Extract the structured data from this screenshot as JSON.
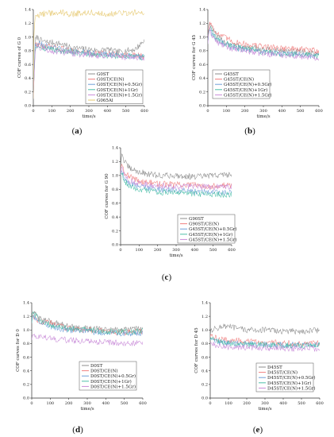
{
  "chart_data": [
    {
      "panel": "(a)",
      "type": "line",
      "ylabel": "COF curves of G 0",
      "xlabel": "time/s",
      "xlim": [
        0,
        600
      ],
      "ylim": [
        0,
        1.4
      ],
      "xticks": [
        0,
        100,
        200,
        300,
        400,
        500,
        600
      ],
      "yticks": [
        0.0,
        0.2,
        0.4,
        0.6,
        0.8,
        1.0,
        1.2,
        1.4
      ],
      "legend_position": "bottom-right",
      "series": [
        {
          "name": "G0ST",
          "color": "#8c8c8c",
          "x": [
            0,
            5,
            10,
            20,
            40,
            60,
            100,
            150,
            200,
            250,
            300,
            350,
            400,
            450,
            500,
            550,
            600
          ],
          "values": [
            0.1,
            0.55,
            0.95,
            1.0,
            0.95,
            0.93,
            0.92,
            0.9,
            0.85,
            0.83,
            0.82,
            0.8,
            0.82,
            0.78,
            0.8,
            0.82,
            0.95
          ]
        },
        {
          "name": "G0ST/CE(N)",
          "color": "#f08080",
          "x": [
            0,
            5,
            10,
            20,
            40,
            60,
            100,
            150,
            200,
            250,
            300,
            350,
            400,
            450,
            500,
            550,
            600
          ],
          "values": [
            0.1,
            0.5,
            0.88,
            0.9,
            0.88,
            0.86,
            0.85,
            0.83,
            0.8,
            0.78,
            0.77,
            0.76,
            0.76,
            0.74,
            0.74,
            0.73,
            0.72
          ]
        },
        {
          "name": "G0ST/CE(N)+0.5Gr)",
          "color": "#6fa0d8",
          "x": [
            0,
            5,
            10,
            20,
            40,
            60,
            100,
            150,
            200,
            250,
            300,
            350,
            400,
            450,
            500,
            550,
            600
          ],
          "values": [
            0.1,
            0.5,
            0.9,
            0.92,
            0.9,
            0.87,
            0.85,
            0.82,
            0.8,
            0.78,
            0.77,
            0.75,
            0.75,
            0.74,
            0.73,
            0.72,
            0.72
          ]
        },
        {
          "name": "G0ST/CE(N)+1Gr)",
          "color": "#4cbfa8",
          "x": [
            0,
            5,
            10,
            20,
            40,
            60,
            100,
            150,
            200,
            250,
            300,
            350,
            400,
            450,
            500,
            550,
            600
          ],
          "values": [
            0.1,
            0.5,
            0.86,
            0.88,
            0.86,
            0.84,
            0.82,
            0.8,
            0.78,
            0.76,
            0.75,
            0.74,
            0.73,
            0.72,
            0.72,
            0.71,
            0.7
          ]
        },
        {
          "name": "G0ST/CE(N)+1.5Gr)",
          "color": "#c88ad8",
          "x": [
            0,
            5,
            10,
            20,
            40,
            60,
            100,
            150,
            200,
            250,
            300,
            350,
            400,
            450,
            500,
            550,
            600
          ],
          "values": [
            0.1,
            0.45,
            0.82,
            0.85,
            0.84,
            0.82,
            0.8,
            0.78,
            0.77,
            0.75,
            0.74,
            0.73,
            0.73,
            0.72,
            0.71,
            0.71,
            0.7
          ]
        },
        {
          "name": "G065Al",
          "color": "#e6c86e",
          "x": [
            0,
            3,
            8,
            15,
            30,
            60,
            100,
            150,
            200,
            250,
            300,
            350,
            400,
            450,
            500,
            550,
            600
          ],
          "values": [
            0.1,
            1.0,
            1.25,
            1.3,
            1.32,
            1.34,
            1.35,
            1.36,
            1.33,
            1.35,
            1.36,
            1.35,
            1.33,
            1.35,
            1.34,
            1.36,
            1.36
          ]
        }
      ]
    },
    {
      "panel": "(b)",
      "type": "line",
      "ylabel": "COF curves for G 45",
      "xlabel": "time/s",
      "xlim": [
        0,
        600
      ],
      "ylim": [
        0,
        1.4
      ],
      "xticks": [
        0,
        100,
        200,
        300,
        400,
        500,
        600
      ],
      "yticks": [
        0.0,
        0.2,
        0.4,
        0.6,
        0.8,
        1.0,
        1.2,
        1.4
      ],
      "legend_position": "bottom-left",
      "series": [
        {
          "name": "G45ST",
          "color": "#8c8c8c",
          "x": [
            0,
            5,
            10,
            20,
            50,
            100,
            150,
            200,
            300,
            400,
            500,
            600
          ],
          "values": [
            0.9,
            1.15,
            1.2,
            1.15,
            1.0,
            0.92,
            0.88,
            0.85,
            0.82,
            0.8,
            0.78,
            0.76
          ]
        },
        {
          "name": "G45ST/CE(N)",
          "color": "#f08080",
          "x": [
            0,
            5,
            10,
            20,
            50,
            100,
            150,
            200,
            300,
            400,
            500,
            600
          ],
          "values": [
            0.9,
            1.15,
            1.22,
            1.18,
            1.05,
            0.98,
            0.92,
            0.9,
            0.86,
            0.84,
            0.82,
            0.8
          ]
        },
        {
          "name": "G45ST/CE(N)+0.5Gr)",
          "color": "#6fa0d8",
          "x": [
            0,
            5,
            10,
            20,
            50,
            100,
            150,
            200,
            300,
            400,
            500,
            600
          ],
          "values": [
            0.9,
            1.1,
            1.12,
            1.05,
            0.95,
            0.88,
            0.84,
            0.82,
            0.78,
            0.76,
            0.74,
            0.72
          ]
        },
        {
          "name": "G45ST/CE(N)+1Gr)",
          "color": "#4cbfa8",
          "x": [
            0,
            5,
            10,
            20,
            50,
            100,
            150,
            200,
            300,
            400,
            500,
            600
          ],
          "values": [
            0.9,
            1.1,
            1.15,
            1.08,
            0.96,
            0.9,
            0.85,
            0.83,
            0.79,
            0.76,
            0.74,
            0.73
          ]
        },
        {
          "name": "G45ST/CE(N)+1.5Gr)",
          "color": "#c88ad8",
          "x": [
            0,
            5,
            10,
            20,
            50,
            100,
            150,
            200,
            300,
            400,
            500,
            600
          ],
          "values": [
            0.9,
            1.08,
            1.1,
            1.04,
            0.92,
            0.86,
            0.82,
            0.8,
            0.76,
            0.74,
            0.72,
            0.7
          ]
        }
      ]
    },
    {
      "panel": "(c)",
      "type": "line",
      "ylabel": "COF curves for G 90",
      "xlabel": "time/s",
      "xlim": [
        0,
        600
      ],
      "ylim": [
        0,
        1.4
      ],
      "xticks": [
        0,
        100,
        200,
        300,
        400,
        500,
        600
      ],
      "yticks": [
        0.0,
        0.2,
        0.4,
        0.6,
        0.8,
        1.0,
        1.2,
        1.4
      ],
      "legend_position": "bottom-right",
      "series": [
        {
          "name": "G90ST",
          "color": "#8c8c8c",
          "x": [
            0,
            5,
            10,
            20,
            50,
            100,
            150,
            200,
            300,
            400,
            500,
            600
          ],
          "values": [
            1.0,
            1.35,
            1.3,
            1.2,
            1.1,
            1.05,
            1.02,
            1.0,
            1.0,
            0.98,
            1.0,
            1.02
          ]
        },
        {
          "name": "G90ST/CE(N)",
          "color": "#f08080",
          "x": [
            0,
            5,
            10,
            20,
            50,
            100,
            150,
            200,
            300,
            400,
            500,
            600
          ],
          "values": [
            1.0,
            1.2,
            1.15,
            1.05,
            0.98,
            0.92,
            0.9,
            0.88,
            0.87,
            0.86,
            0.85,
            0.86
          ]
        },
        {
          "name": "G45ST/CE(N)+0.5Gr)",
          "color": "#6fa0d8",
          "x": [
            0,
            5,
            10,
            20,
            50,
            100,
            150,
            200,
            300,
            400,
            500,
            600
          ],
          "values": [
            1.0,
            1.1,
            1.05,
            0.95,
            0.88,
            0.84,
            0.82,
            0.8,
            0.78,
            0.77,
            0.76,
            0.75
          ]
        },
        {
          "name": "G45ST/CE(N)+1Gr)",
          "color": "#4cbfa8",
          "x": [
            0,
            5,
            10,
            20,
            50,
            100,
            150,
            200,
            300,
            400,
            500,
            600
          ],
          "values": [
            1.0,
            1.05,
            1.0,
            0.92,
            0.85,
            0.8,
            0.78,
            0.76,
            0.75,
            0.74,
            0.73,
            0.72
          ]
        },
        {
          "name": "G45ST/CE(N)+1.5Gr)",
          "color": "#c88ad8",
          "x": [
            0,
            5,
            10,
            20,
            50,
            100,
            150,
            200,
            300,
            400,
            500,
            600
          ],
          "values": [
            1.0,
            1.15,
            1.1,
            1.0,
            0.92,
            0.88,
            0.86,
            0.85,
            0.84,
            0.84,
            0.83,
            0.84
          ]
        }
      ]
    },
    {
      "panel": "(d)",
      "type": "line",
      "ylabel": "COF curves for D 0",
      "xlabel": "time/s",
      "xlim": [
        0,
        600
      ],
      "ylim": [
        0,
        1.4
      ],
      "xticks": [
        0,
        100,
        200,
        300,
        400,
        500,
        600
      ],
      "yticks": [
        0.0,
        0.2,
        0.4,
        0.6,
        0.8,
        1.0,
        1.2,
        1.4
      ],
      "legend_position": "bottom-right",
      "series": [
        {
          "name": "D0ST",
          "color": "#8c8c8c",
          "x": [
            0,
            5,
            10,
            30,
            60,
            100,
            150,
            200,
            300,
            400,
            500,
            600
          ],
          "values": [
            1.1,
            1.3,
            1.25,
            1.2,
            1.15,
            1.12,
            1.1,
            1.05,
            1.02,
            1.0,
            1.0,
            1.02
          ]
        },
        {
          "name": "D0ST/CE(N)",
          "color": "#f08080",
          "x": [
            0,
            5,
            10,
            30,
            60,
            100,
            150,
            200,
            300,
            400,
            500,
            600
          ],
          "values": [
            1.1,
            1.25,
            1.2,
            1.15,
            1.12,
            1.1,
            1.06,
            1.02,
            1.0,
            0.98,
            0.96,
            0.98
          ]
        },
        {
          "name": "D0ST/CE(N)+0.5Gr)",
          "color": "#6fa0d8",
          "x": [
            0,
            5,
            10,
            30,
            60,
            100,
            150,
            200,
            300,
            400,
            500,
            600
          ],
          "values": [
            1.1,
            1.22,
            1.18,
            1.14,
            1.1,
            1.06,
            1.02,
            1.0,
            0.98,
            0.96,
            0.95,
            0.96
          ]
        },
        {
          "name": "D0ST/CE(N)+1Gr)",
          "color": "#4cbfa8",
          "x": [
            0,
            5,
            10,
            30,
            60,
            100,
            150,
            200,
            300,
            400,
            500,
            600
          ],
          "values": [
            1.1,
            1.3,
            1.24,
            1.18,
            1.12,
            1.08,
            1.04,
            1.02,
            1.0,
            0.98,
            0.97,
            0.98
          ]
        },
        {
          "name": "D0ST/CE(N)+1.5Gr)",
          "color": "#c88ad8",
          "x": [
            0,
            5,
            10,
            30,
            60,
            100,
            150,
            200,
            300,
            400,
            500,
            600
          ],
          "values": [
            0.85,
            0.95,
            0.92,
            0.9,
            0.9,
            0.88,
            0.86,
            0.85,
            0.84,
            0.82,
            0.8,
            0.82
          ]
        }
      ]
    },
    {
      "panel": "(e)",
      "type": "line",
      "ylabel": "COF curves for D 45",
      "xlabel": "time/s",
      "xlim": [
        0,
        600
      ],
      "ylim": [
        0,
        1.4
      ],
      "xticks": [
        0,
        100,
        200,
        300,
        400,
        500,
        600
      ],
      "yticks": [
        0.0,
        0.2,
        0.4,
        0.6,
        0.8,
        1.0,
        1.2,
        1.4
      ],
      "legend_position": "bottom-right",
      "series": [
        {
          "name": "D45ST",
          "color": "#8c8c8c",
          "x": [
            0,
            5,
            10,
            30,
            60,
            100,
            150,
            200,
            300,
            400,
            500,
            600
          ],
          "values": [
            0.9,
            1.05,
            1.0,
            1.02,
            1.05,
            1.05,
            1.02,
            1.0,
            1.0,
            0.98,
            0.98,
            1.0
          ]
        },
        {
          "name": "D45ST/CE(N)",
          "color": "#f08080",
          "x": [
            0,
            5,
            10,
            30,
            60,
            100,
            150,
            200,
            300,
            400,
            500,
            600
          ],
          "values": [
            0.9,
            0.95,
            0.9,
            0.88,
            0.86,
            0.85,
            0.84,
            0.83,
            0.82,
            0.81,
            0.8,
            0.8
          ]
        },
        {
          "name": "D45ST/CE(N)+0.5Gr)",
          "color": "#6fa0d8",
          "x": [
            0,
            5,
            10,
            30,
            60,
            100,
            150,
            200,
            300,
            400,
            500,
            600
          ],
          "values": [
            0.85,
            0.88,
            0.85,
            0.83,
            0.82,
            0.81,
            0.8,
            0.8,
            0.79,
            0.78,
            0.78,
            0.78
          ]
        },
        {
          "name": "D45ST/CE(N)+1Gr)",
          "color": "#4cbfa8",
          "x": [
            0,
            5,
            10,
            30,
            60,
            100,
            150,
            200,
            300,
            400,
            500,
            600
          ],
          "values": [
            0.85,
            0.9,
            0.86,
            0.84,
            0.82,
            0.8,
            0.79,
            0.78,
            0.78,
            0.77,
            0.77,
            0.77
          ]
        },
        {
          "name": "D45ST/CE(N)+1.5Gr)",
          "color": "#c88ad8",
          "x": [
            0,
            5,
            10,
            30,
            60,
            100,
            150,
            200,
            300,
            400,
            500,
            600
          ],
          "values": [
            0.8,
            0.82,
            0.8,
            0.78,
            0.76,
            0.75,
            0.75,
            0.74,
            0.74,
            0.73,
            0.73,
            0.73
          ]
        }
      ]
    }
  ]
}
